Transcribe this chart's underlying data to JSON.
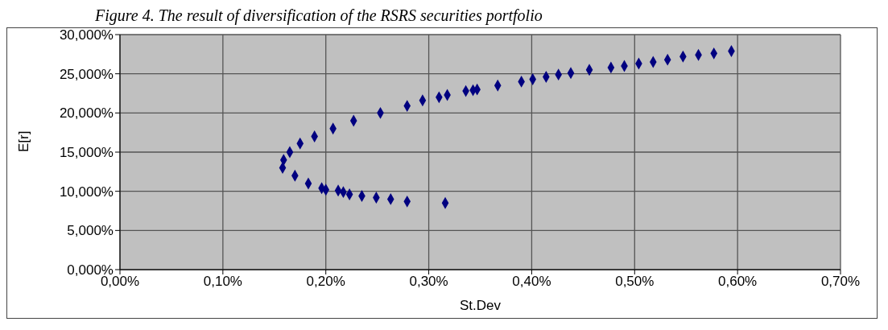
{
  "chart_data": {
    "type": "scatter",
    "title": "Figure 4. The result of diversification of the RSRS securities portfolio",
    "xlabel": "St.Dev",
    "ylabel": "E[r]",
    "x": [
      0.158,
      0.159,
      0.165,
      0.175,
      0.189,
      0.207,
      0.227,
      0.253,
      0.17,
      0.183,
      0.196,
      0.2,
      0.212,
      0.217,
      0.223,
      0.235,
      0.249,
      0.263,
      0.279,
      0.316,
      0.279,
      0.294,
      0.31,
      0.318,
      0.336,
      0.343,
      0.347,
      0.367,
      0.39,
      0.401,
      0.414,
      0.426,
      0.438,
      0.456,
      0.477,
      0.49,
      0.504,
      0.518,
      0.532,
      0.547,
      0.562,
      0.577,
      0.594
    ],
    "series": [
      {
        "color": "#000080",
        "values": [
          13.0,
          14.0,
          15.0,
          16.1,
          17.0,
          18.0,
          19.0,
          20.0,
          12.0,
          11.0,
          10.4,
          10.2,
          10.1,
          9.9,
          9.6,
          9.4,
          9.2,
          9.0,
          8.7,
          8.5,
          20.9,
          21.6,
          22.0,
          22.3,
          22.8,
          22.9,
          23.0,
          23.5,
          24.0,
          24.3,
          24.6,
          24.9,
          25.1,
          25.5,
          25.8,
          26.0,
          26.3,
          26.5,
          26.8,
          27.2,
          27.4,
          27.6,
          27.9
        ]
      }
    ],
    "xlim": [
      0,
      0.7
    ],
    "ylim": [
      0,
      30
    ],
    "xticks": [
      {
        "value": 0,
        "label": "0,00%"
      },
      {
        "value": 0.1,
        "label": "0,10%"
      },
      {
        "value": 0.2,
        "label": "0,20%"
      },
      {
        "value": 0.3,
        "label": "0,30%"
      },
      {
        "value": 0.4,
        "label": "0,40%"
      },
      {
        "value": 0.5,
        "label": "0,50%"
      },
      {
        "value": 0.6,
        "label": "0,60%"
      },
      {
        "value": 0.7,
        "label": "0,70%"
      }
    ],
    "yticks": [
      {
        "value": 0,
        "label": "0,000%"
      },
      {
        "value": 5,
        "label": "5,000%"
      },
      {
        "value": 10,
        "label": "10,000%"
      },
      {
        "value": 15,
        "label": "15,000%"
      },
      {
        "value": 20,
        "label": "20,000%"
      },
      {
        "value": 25,
        "label": "25,000%"
      },
      {
        "value": 30,
        "label": "30,000%"
      }
    ],
    "grid": true,
    "marker": "diamond"
  }
}
